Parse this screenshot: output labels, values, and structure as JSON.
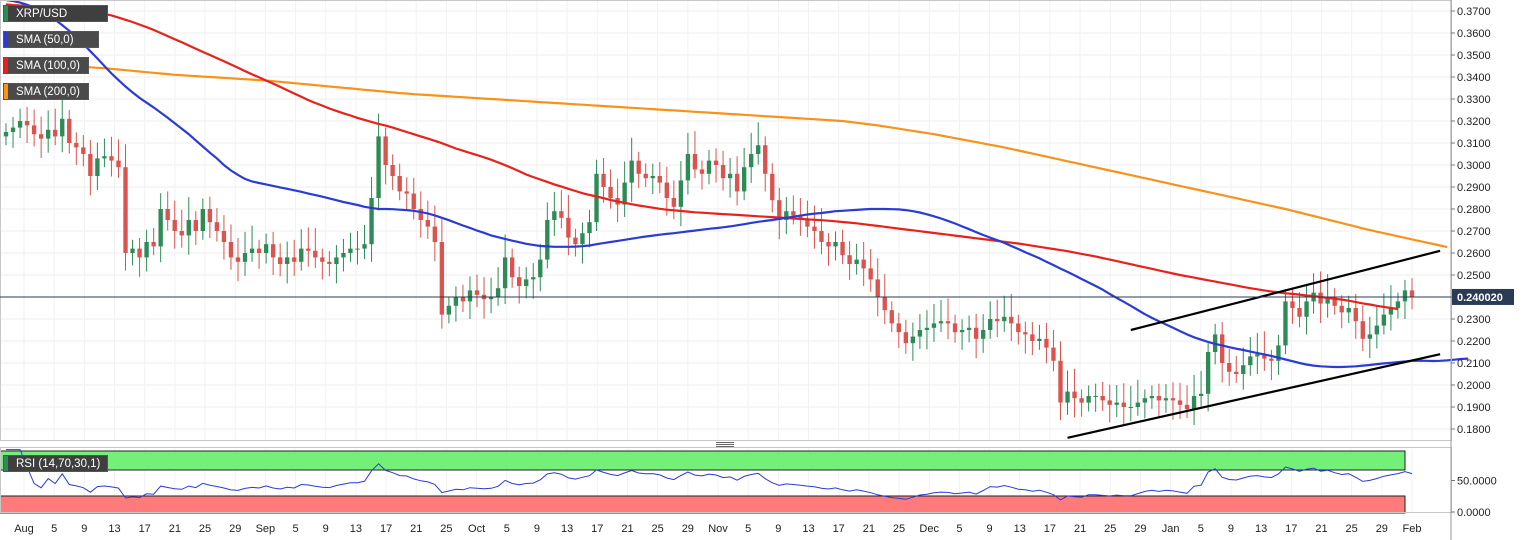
{
  "symbol_label": "XRP/USD",
  "indicators": [
    {
      "label": "SMA (50,0)",
      "color": "#2a3bd6"
    },
    {
      "label": "SMA (100,0)",
      "color": "#e8211d"
    },
    {
      "label": "SMA (200,0)",
      "color": "#f7931a"
    }
  ],
  "rsi_label": "RSI (14,70,30,1)",
  "current_price_label": "0.240020",
  "colors": {
    "bull": "#2e8b57",
    "bear": "#d9534f",
    "sma50": "#2a3bd6",
    "sma100": "#e8211d",
    "sma200": "#f7931a",
    "rsi_line": "#2a3bd6",
    "overbought": "#74f07a",
    "oversold": "#ff7b7b"
  },
  "chart_data": {
    "type": "candlestick",
    "symbol": "XRP/USD",
    "ylim": [
      0.175,
      0.375
    ],
    "y_ticks": [
      "0.3700",
      "0.3600",
      "0.3500",
      "0.3400",
      "0.3300",
      "0.3200",
      "0.3100",
      "0.3000",
      "0.2900",
      "0.2800",
      "0.2700",
      "0.2600",
      "0.2500",
      "0.2400",
      "0.2300",
      "0.2200",
      "0.2100",
      "0.2000",
      "0.1900",
      "0.1800"
    ],
    "x_ticks": [
      "Aug",
      "5",
      "9",
      "13",
      "17",
      "21",
      "25",
      "29",
      "Sep",
      "5",
      "9",
      "13",
      "17",
      "21",
      "25",
      "Oct",
      "5",
      "9",
      "13",
      "17",
      "21",
      "25",
      "29",
      "Nov",
      "5",
      "9",
      "13",
      "17",
      "21",
      "25",
      "Dec",
      "5",
      "9",
      "13",
      "17",
      "21",
      "25",
      "29",
      "Jan",
      "5",
      "9",
      "13",
      "17",
      "21",
      "25",
      "29",
      "Feb"
    ],
    "last_price": 0.24002,
    "close": [
      0.315,
      0.317,
      0.32,
      0.318,
      0.314,
      0.312,
      0.316,
      0.313,
      0.321,
      0.31,
      0.308,
      0.305,
      0.295,
      0.303,
      0.304,
      0.302,
      0.299,
      0.26,
      0.262,
      0.258,
      0.265,
      0.263,
      0.28,
      0.275,
      0.27,
      0.268,
      0.275,
      0.27,
      0.28,
      0.274,
      0.27,
      0.265,
      0.258,
      0.256,
      0.26,
      0.262,
      0.26,
      0.264,
      0.258,
      0.255,
      0.258,
      0.256,
      0.262,
      0.261,
      0.258,
      0.256,
      0.255,
      0.258,
      0.26,
      0.262,
      0.262,
      0.264,
      0.285,
      0.313,
      0.3,
      0.295,
      0.288,
      0.287,
      0.28,
      0.275,
      0.272,
      0.265,
      0.232,
      0.236,
      0.24,
      0.238,
      0.243,
      0.241,
      0.239,
      0.24,
      0.244,
      0.258,
      0.249,
      0.245,
      0.248,
      0.249,
      0.257,
      0.275,
      0.279,
      0.276,
      0.267,
      0.264,
      0.269,
      0.274,
      0.296,
      0.29,
      0.285,
      0.282,
      0.292,
      0.302,
      0.296,
      0.294,
      0.295,
      0.292,
      0.285,
      0.281,
      0.293,
      0.305,
      0.298,
      0.296,
      0.302,
      0.3,
      0.294,
      0.296,
      0.288,
      0.299,
      0.305,
      0.309,
      0.296,
      0.284,
      0.275,
      0.279,
      0.277,
      0.275,
      0.272,
      0.27,
      0.265,
      0.263,
      0.265,
      0.259,
      0.255,
      0.257,
      0.253,
      0.248,
      0.24,
      0.234,
      0.228,
      0.224,
      0.219,
      0.222,
      0.225,
      0.226,
      0.228,
      0.229,
      0.228,
      0.224,
      0.225,
      0.226,
      0.221,
      0.225,
      0.23,
      0.229,
      0.231,
      0.228,
      0.224,
      0.223,
      0.22,
      0.221,
      0.217,
      0.211,
      0.192,
      0.197,
      0.194,
      0.192,
      0.195,
      0.195,
      0.193,
      0.191,
      0.192,
      0.19,
      0.19,
      0.192,
      0.194,
      0.195,
      0.193,
      0.194,
      0.193,
      0.191,
      0.189,
      0.195,
      0.196,
      0.215,
      0.223,
      0.21,
      0.206,
      0.205,
      0.209,
      0.213,
      0.214,
      0.212,
      0.211,
      0.218,
      0.238,
      0.235,
      0.231,
      0.238,
      0.242,
      0.237,
      0.24,
      0.236,
      0.233,
      0.235,
      0.229,
      0.221,
      0.223,
      0.227,
      0.232,
      0.235,
      0.238,
      0.243,
      0.24
    ],
    "sma_50": [
      0.375,
      0.3745,
      0.3738,
      0.3728,
      0.3716,
      0.37,
      0.368,
      0.366,
      0.3636,
      0.361,
      0.3582,
      0.355,
      0.3517,
      0.3484,
      0.345,
      0.3416,
      0.3386,
      0.3357,
      0.333,
      0.3305,
      0.3283,
      0.3262,
      0.3238,
      0.3215,
      0.319,
      0.3165,
      0.314,
      0.3112,
      0.3084,
      0.3056,
      0.303,
      0.3,
      0.2975,
      0.2955,
      0.2937,
      0.2925,
      0.2918,
      0.2912,
      0.2905,
      0.2898,
      0.2892,
      0.2885,
      0.2878,
      0.287,
      0.2863,
      0.2856,
      0.2848,
      0.284,
      0.2832,
      0.2825,
      0.2818,
      0.281,
      0.2805,
      0.28,
      0.28,
      0.2799,
      0.2797,
      0.2795,
      0.2792,
      0.2786,
      0.278,
      0.2771,
      0.276,
      0.2749,
      0.2737,
      0.2725,
      0.2714,
      0.2702,
      0.2692,
      0.268,
      0.2672,
      0.2664,
      0.2656,
      0.2649,
      0.2642,
      0.2637,
      0.2632,
      0.263,
      0.2628,
      0.2628,
      0.2628,
      0.2629,
      0.2631,
      0.2634,
      0.264,
      0.2645,
      0.265,
      0.2655,
      0.266,
      0.2665,
      0.267,
      0.2675,
      0.2679,
      0.2683,
      0.2687,
      0.269,
      0.2694,
      0.2698,
      0.2702,
      0.2706,
      0.271,
      0.2713,
      0.2717,
      0.2721,
      0.2726,
      0.2731,
      0.2737,
      0.2742,
      0.2746,
      0.275,
      0.2755,
      0.276,
      0.2765,
      0.277,
      0.2775,
      0.2779,
      0.2782,
      0.2786,
      0.279,
      0.2792,
      0.2794,
      0.2796,
      0.2798,
      0.28,
      0.28,
      0.28,
      0.2799,
      0.2798,
      0.2795,
      0.279,
      0.2784,
      0.2776,
      0.2767,
      0.2757,
      0.2746,
      0.2734,
      0.2721,
      0.2708,
      0.2695,
      0.2682,
      0.267,
      0.2658,
      0.2646,
      0.2632,
      0.2618,
      0.2603,
      0.259,
      0.2576,
      0.256,
      0.2545,
      0.2529,
      0.2514,
      0.2498,
      0.2482,
      0.2466,
      0.245,
      0.2433,
      0.2414,
      0.2396,
      0.2378,
      0.236,
      0.2341,
      0.2322,
      0.2305,
      0.229,
      0.2275,
      0.226,
      0.2245,
      0.223,
      0.2217,
      0.2206,
      0.2196,
      0.2187,
      0.218,
      0.2172,
      0.2165,
      0.2159,
      0.2152,
      0.2145,
      0.2139,
      0.2132,
      0.2124,
      0.2116,
      0.2108,
      0.21,
      0.2093,
      0.2088,
      0.2085,
      0.2083,
      0.2082,
      0.2082,
      0.2083,
      0.2085,
      0.2088,
      0.2091,
      0.2095,
      0.2098,
      0.2101,
      0.2104,
      0.2107,
      0.211,
      0.2111,
      0.211,
      0.2109,
      0.211,
      0.2112,
      0.2115,
      0.2118,
      0.212
    ],
    "sma_100": [
      0.373,
      0.3727,
      0.3725,
      0.3724,
      0.3722,
      0.372,
      0.3718,
      0.3717,
      0.3715,
      0.3713,
      0.371,
      0.3706,
      0.37,
      0.3694,
      0.3687,
      0.368,
      0.367,
      0.366,
      0.365,
      0.3638,
      0.3627,
      0.3614,
      0.36,
      0.3586,
      0.3572,
      0.3558,
      0.3543,
      0.3528,
      0.3514,
      0.35,
      0.3486,
      0.3472,
      0.3457,
      0.3442,
      0.3427,
      0.3412,
      0.3398,
      0.3384,
      0.337,
      0.3355,
      0.334,
      0.3325,
      0.331,
      0.3295,
      0.3282,
      0.327,
      0.3257,
      0.3246,
      0.3235,
      0.3225,
      0.3214,
      0.3205,
      0.3196,
      0.3187,
      0.3179,
      0.317,
      0.316,
      0.315,
      0.314,
      0.313,
      0.312,
      0.311,
      0.3099,
      0.3087,
      0.3075,
      0.3065,
      0.3055,
      0.3045,
      0.3035,
      0.3024,
      0.3012,
      0.2999,
      0.2986,
      0.2972,
      0.2957,
      0.2945,
      0.2934,
      0.2923,
      0.2912,
      0.2902,
      0.2892,
      0.2882,
      0.2872,
      0.2864,
      0.2857,
      0.2849,
      0.2841,
      0.2834,
      0.2828,
      0.2822,
      0.2816,
      0.2811,
      0.2806,
      0.2801,
      0.2797,
      0.2794,
      0.2791,
      0.2788,
      0.2785,
      0.2783,
      0.2781,
      0.2779,
      0.2777,
      0.2775,
      0.2773,
      0.2771,
      0.2769,
      0.2767,
      0.2765,
      0.2763,
      0.2761,
      0.2759,
      0.2757,
      0.2755,
      0.2753,
      0.2751,
      0.2749,
      0.2747,
      0.2744,
      0.2741,
      0.2738,
      0.2735,
      0.2731,
      0.2727,
      0.2723,
      0.2719,
      0.2715,
      0.2711,
      0.2707,
      0.2703,
      0.2699,
      0.2695,
      0.2691,
      0.2687,
      0.2683,
      0.2679,
      0.2675,
      0.2671,
      0.2667,
      0.2663,
      0.2659,
      0.2655,
      0.2651,
      0.2647,
      0.2643,
      0.2638,
      0.2633,
      0.2628,
      0.2623,
      0.2618,
      0.2613,
      0.2608,
      0.2602,
      0.2596,
      0.259,
      0.2584,
      0.2577,
      0.257,
      0.2563,
      0.2556,
      0.2549,
      0.2542,
      0.2535,
      0.2528,
      0.2521,
      0.2514,
      0.2507,
      0.25,
      0.2494,
      0.2488,
      0.2482,
      0.2476,
      0.247,
      0.2464,
      0.2458,
      0.2452,
      0.2446,
      0.244,
      0.2435,
      0.243,
      0.2425,
      0.2421,
      0.2417,
      0.2414,
      0.2411,
      0.2407,
      0.2404,
      0.24,
      0.2396,
      0.2392,
      0.2388,
      0.2383,
      0.2377,
      0.2371,
      0.2366,
      0.236,
      0.2355,
      0.235,
      0.2345
    ],
    "sma_200": [
      0.346,
      0.3459,
      0.3458,
      0.3457,
      0.3456,
      0.3455,
      0.3454,
      0.3452,
      0.3451,
      0.3449,
      0.3448,
      0.3446,
      0.3444,
      0.3442,
      0.344,
      0.3437,
      0.3434,
      0.3431,
      0.3428,
      0.3425,
      0.3422,
      0.3419,
      0.3416,
      0.3413,
      0.341,
      0.3408,
      0.3406,
      0.3404,
      0.3402,
      0.34,
      0.3398,
      0.3396,
      0.3394,
      0.3392,
      0.339,
      0.3388,
      0.3386,
      0.3384,
      0.3381,
      0.3378,
      0.3375,
      0.3372,
      0.3369,
      0.3366,
      0.3363,
      0.336,
      0.3357,
      0.3354,
      0.3351,
      0.3348,
      0.3345,
      0.3342,
      0.3339,
      0.3336,
      0.3333,
      0.333,
      0.3327,
      0.3325,
      0.3322,
      0.332,
      0.3318,
      0.3316,
      0.3314,
      0.3312,
      0.331,
      0.3308,
      0.3306,
      0.3304,
      0.3302,
      0.33,
      0.3298,
      0.3296,
      0.3294,
      0.3292,
      0.329,
      0.3288,
      0.3286,
      0.3284,
      0.3282,
      0.328,
      0.3278,
      0.3276,
      0.3274,
      0.3272,
      0.327,
      0.3268,
      0.3266,
      0.3264,
      0.3262,
      0.326,
      0.3258,
      0.3256,
      0.3254,
      0.3252,
      0.325,
      0.3248,
      0.3246,
      0.3244,
      0.3242,
      0.324,
      0.3238,
      0.3236,
      0.3234,
      0.3232,
      0.323,
      0.3228,
      0.3226,
      0.3224,
      0.3222,
      0.322,
      0.3218,
      0.3216,
      0.3214,
      0.3212,
      0.321,
      0.3208,
      0.3206,
      0.3204,
      0.3202,
      0.32,
      0.3196,
      0.3192,
      0.3188,
      0.3184,
      0.318,
      0.3175,
      0.317,
      0.3165,
      0.316,
      0.3155,
      0.315,
      0.3145,
      0.314,
      0.3134,
      0.3128,
      0.3122,
      0.3116,
      0.311,
      0.3104,
      0.3098,
      0.3092,
      0.3086,
      0.308,
      0.3073,
      0.3066,
      0.3059,
      0.3052,
      0.3045,
      0.3038,
      0.3031,
      0.3024,
      0.3017,
      0.301,
      0.3003,
      0.2996,
      0.2989,
      0.2982,
      0.2975,
      0.2968,
      0.2961,
      0.2954,
      0.2947,
      0.294,
      0.2933,
      0.2926,
      0.2919,
      0.2912,
      0.2905,
      0.2898,
      0.2891,
      0.2884,
      0.2877,
      0.287,
      0.2863,
      0.2856,
      0.2849,
      0.2842,
      0.2835,
      0.2828,
      0.2821,
      0.2814,
      0.2807,
      0.28,
      0.2792,
      0.2784,
      0.2776,
      0.2768,
      0.276,
      0.2752,
      0.2744,
      0.2736,
      0.2728,
      0.272,
      0.2712,
      0.2704,
      0.2697,
      0.269,
      0.2683,
      0.2676,
      0.2669,
      0.2662,
      0.2655,
      0.2648,
      0.2641,
      0.2634,
      0.2627
    ],
    "trendlines": [
      {
        "from": [
          160,
          0.225
        ],
        "to": [
          204,
          0.261
        ]
      },
      {
        "from": [
          151,
          0.176
        ],
        "to": [
          204,
          0.214
        ]
      }
    ],
    "rsi": {
      "ylim": [
        0,
        100
      ],
      "y_ticks": [
        "50.0000",
        "0.0000"
      ],
      "overbought": 70,
      "oversold": 30
    }
  }
}
